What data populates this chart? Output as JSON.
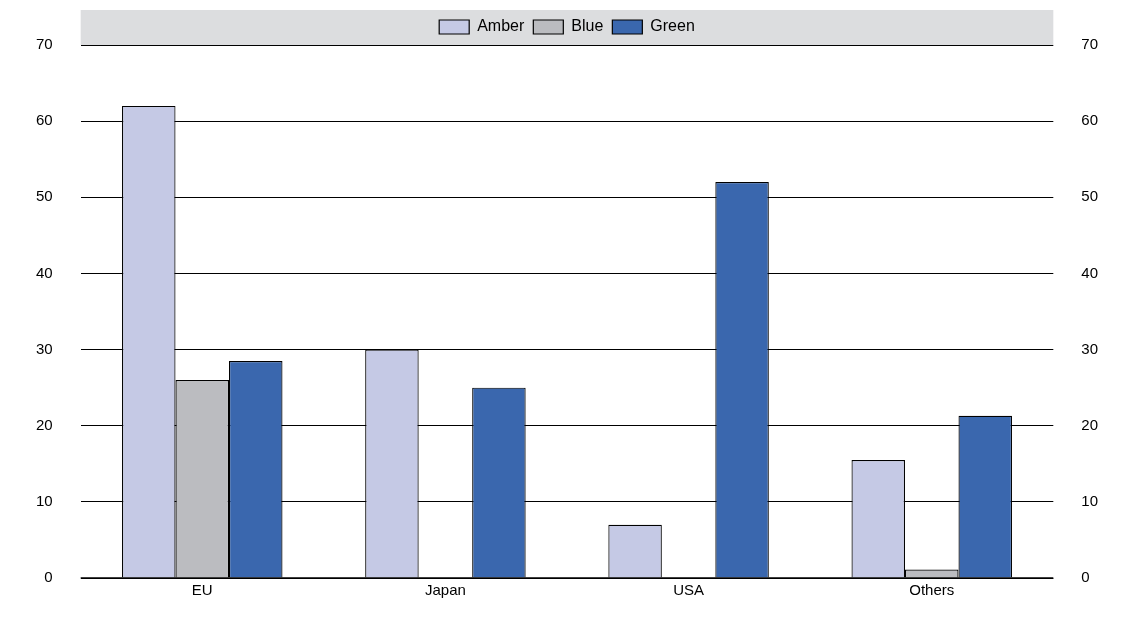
{
  "chart_data": {
    "type": "bar",
    "categories": [
      "EU",
      "Japan",
      "USA",
      "Others"
    ],
    "series": [
      {
        "name": "Amber",
        "color": "#c5c9e5",
        "values": [
          62,
          30,
          7,
          15.5
        ]
      },
      {
        "name": "Blue",
        "color": "#bbbcc0",
        "values": [
          26,
          null,
          null,
          1.1
        ]
      },
      {
        "name": "Green",
        "color": "#3a67ae",
        "values": [
          28.5,
          25,
          52,
          21.3
        ]
      }
    ],
    "ylim": [
      0,
      70
    ],
    "yticks": [
      0,
      10,
      20,
      30,
      40,
      50,
      60,
      70
    ],
    "y2lim": [
      0,
      70
    ],
    "y2ticks": [
      0,
      10,
      20,
      30,
      40,
      50,
      60,
      70
    ],
    "grid": "y",
    "legend": "top"
  }
}
